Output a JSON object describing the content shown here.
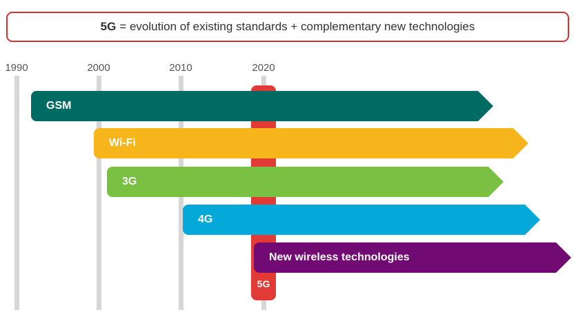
{
  "headline": {
    "bold_text": "5G",
    "text": "= evolution of existing standards + complementary new technologies"
  },
  "years": [
    "1990",
    "2000",
    "2010",
    "2020"
  ],
  "bars": [
    {
      "label": "GSM",
      "color": "#006b63"
    },
    {
      "label": "Wi-Fi",
      "color": "#f6b51b"
    },
    {
      "label": "3G",
      "color": "#7ac043"
    },
    {
      "label": "4G",
      "color": "#04a9d9"
    },
    {
      "label": "New wireless technologies",
      "color": "#720a74"
    }
  ],
  "fiveg": {
    "label": "5G",
    "color": "#e23b35"
  }
}
